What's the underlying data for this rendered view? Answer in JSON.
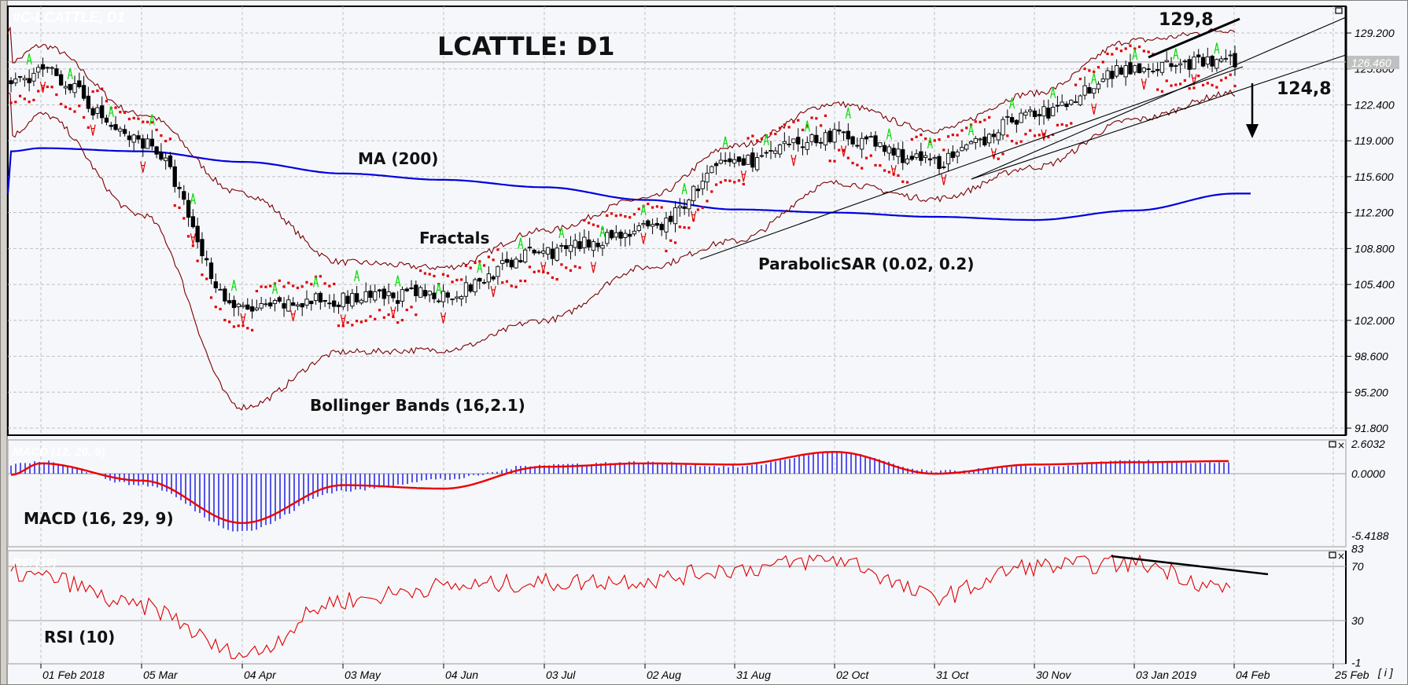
{
  "window": {
    "watermark": "#C-LCATTLE, D1",
    "close_icon": "×",
    "info_button": "[ i ]"
  },
  "colors": {
    "background": "#f6f7fb",
    "grid": "#c0c0c0",
    "ma200": "#0000e0",
    "bollinger": "#7a0000",
    "sar": "#e00000",
    "fractal_up": "#00dd00",
    "fractal_down": "#e00000",
    "macd_hist": "#0000dd",
    "macd_signal": "#ee0000",
    "rsi": "#e00000",
    "current_price_bg": "#c0c0c0"
  },
  "annotations": {
    "title": "LCATTLE: D1",
    "ma": "MA (200)",
    "fractals": "Fractals",
    "sar": "ParabolicSAR (0.02, 0.2)",
    "bollinger": "Bollinger Bands (16,2.1)",
    "resistance": "129,8",
    "support": "124,8",
    "macd": "MACD (16, 29, 9)",
    "rsi": "RSI (10)",
    "macd_watermark": "MACD (12, 26, 9)",
    "rsi_watermark": "RSI (10)"
  },
  "price_axis": {
    "ticks": [
      "129.200",
      "125.800",
      "122.400",
      "119.000",
      "115.600",
      "112.200",
      "108.800",
      "105.400",
      "102.000",
      "98.600",
      "95.200",
      "91.800"
    ],
    "current_price": "126.460"
  },
  "macd_axis": {
    "ticks": [
      "2.6032",
      "0.0000",
      "-5.4188"
    ]
  },
  "rsi_axis": {
    "ticks": [
      "83",
      "70",
      "30",
      "-1"
    ]
  },
  "time_axis": {
    "ticks": [
      "01 Feb 2018",
      "05 Mar",
      "04 Apr",
      "03 May",
      "04 Jun",
      "03 Jul",
      "02 Aug",
      "31 Aug",
      "02 Oct",
      "31 Oct",
      "30 Nov",
      "03 Jan 2019",
      "04 Feb",
      "25 Feb"
    ]
  },
  "chart_data": [
    {
      "type": "candlestick",
      "title": "LCATTLE: D1",
      "symbol": "#C-LCATTLE",
      "timeframe": "D1",
      "ylim": [
        91.8,
        131.0
      ],
      "x": [
        "Jan 2018",
        "01 Feb 2018",
        "05 Mar",
        "04 Apr",
        "03 May",
        "04 Jun",
        "03 Jul",
        "02 Aug",
        "31 Aug",
        "02 Oct",
        "31 Oct",
        "30 Nov",
        "03 Jan 2019",
        "04 Feb"
      ],
      "close_approx": [
        124.5,
        125.5,
        119.0,
        103.0,
        104.0,
        104.5,
        108.5,
        110.5,
        117.0,
        119.5,
        117.0,
        121.5,
        126.0,
        126.46
      ],
      "series": [
        {
          "name": "MA (200)",
          "values": [
            118.0,
            118.3,
            118.0,
            117.0,
            115.9,
            115.3,
            114.6,
            113.4,
            112.5,
            112.2,
            111.8,
            111.5,
            112.4,
            114.0
          ]
        },
        {
          "name": "Bollinger upper (16,2.1)",
          "values": [
            126.5,
            128.0,
            121.5,
            114.0,
            107.5,
            107.0,
            110.5,
            113.5,
            118.5,
            122.5,
            120.0,
            123.5,
            128.5,
            129.5
          ]
        },
        {
          "name": "Bollinger lower (16,2.1)",
          "values": [
            119.5,
            121.5,
            112.0,
            93.8,
            99.0,
            99.2,
            102.0,
            107.0,
            109.5,
            115.0,
            113.5,
            116.5,
            121.0,
            123.5
          ]
        }
      ],
      "annotations": [
        "129,8 (resistance)",
        "124,8 (support)",
        "down arrow (sell signal)",
        "ascending channel lines"
      ],
      "current_price": 126.46
    },
    {
      "type": "bar+line",
      "title": "MACD (16, 29, 9)",
      "ylim": [
        -5.4188,
        2.6032
      ],
      "x": [
        "Jan 2018",
        "01 Feb 2018",
        "05 Mar",
        "04 Apr",
        "03 May",
        "04 Jun",
        "03 Jul",
        "02 Aug",
        "31 Aug",
        "02 Oct",
        "31 Oct",
        "30 Nov",
        "03 Jan 2019",
        "04 Feb"
      ],
      "series": [
        {
          "name": "histogram",
          "values": [
            0.8,
            1.1,
            -1.0,
            -5.0,
            -1.5,
            -0.5,
            0.8,
            1.0,
            0.6,
            1.9,
            0.2,
            0.6,
            1.1,
            0.9
          ]
        },
        {
          "name": "signal",
          "values": [
            -0.1,
            0.9,
            -0.6,
            -4.3,
            -1.0,
            -1.3,
            0.6,
            0.9,
            0.8,
            1.9,
            0.0,
            0.8,
            1.0,
            1.1
          ]
        }
      ]
    },
    {
      "type": "line",
      "title": "RSI (10)",
      "ylim": [
        -1,
        83
      ],
      "levels": [
        30,
        70
      ],
      "x": [
        "Jan 2018",
        "01 Feb 2018",
        "05 Mar",
        "04 Apr",
        "03 May",
        "04 Jun",
        "03 Jul",
        "02 Aug",
        "31 Aug",
        "02 Oct",
        "31 Oct",
        "30 Nov",
        "03 Jan 2019",
        "04 Feb"
      ],
      "values": [
        65,
        62,
        40,
        5,
        45,
        55,
        58,
        60,
        68,
        75,
        48,
        70,
        72,
        53
      ],
      "annotations": [
        "descending trendline across RSI highs (divergence)"
      ]
    }
  ]
}
